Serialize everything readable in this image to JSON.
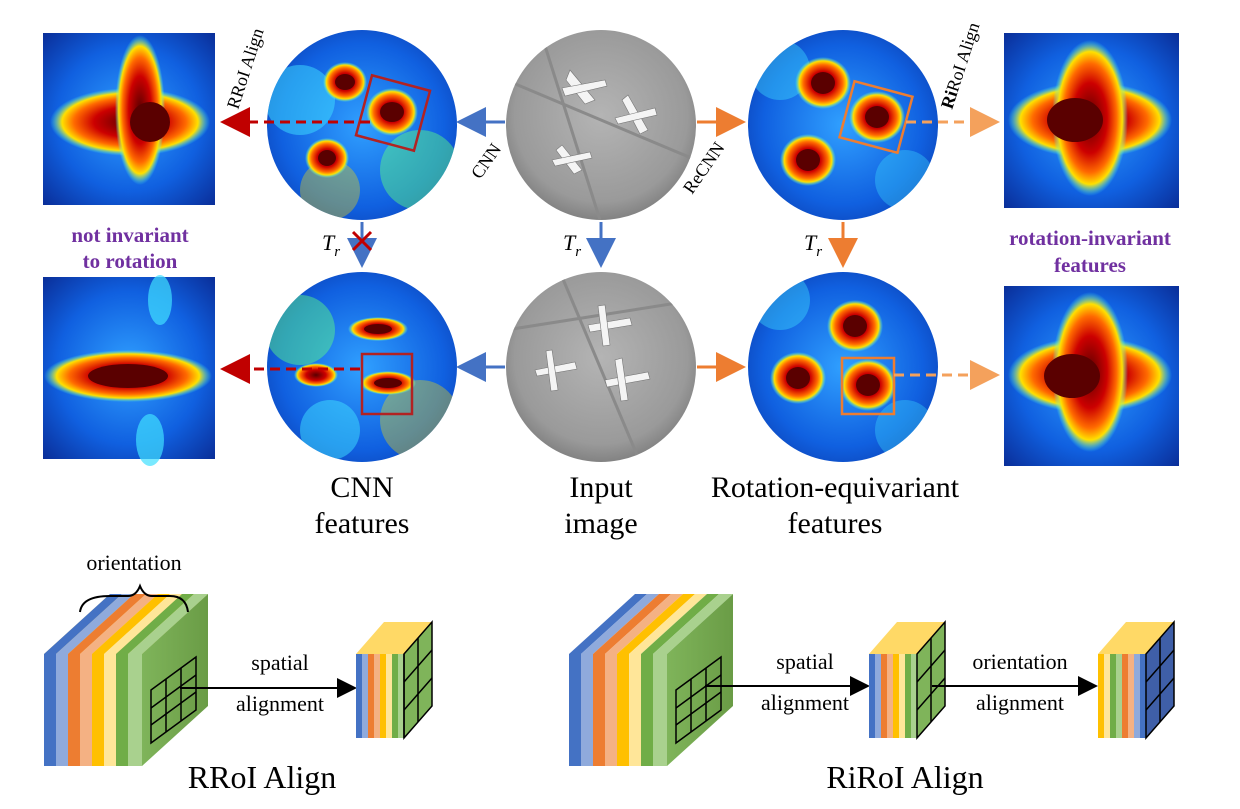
{
  "edges": {
    "cnn": "CNN",
    "recnn": "ReCNN",
    "rroi_align": "RRoI Align",
    "riroi_prefix": "Ri",
    "riroi_suffix": "RoI Align",
    "tr_symbol": "T",
    "tr_subscript": "r"
  },
  "labels": {
    "not_invariant_line1": "not invariant",
    "not_invariant_line2": "to rotation",
    "rotation_invariant_line1": "rotation-invariant",
    "rotation_invariant_line2": "features"
  },
  "captions": {
    "cnn_line1": "CNN",
    "cnn_line2": "features",
    "input_line1": "Input",
    "input_line2": "image",
    "requiv_line1": "Rotation-equivariant",
    "requiv_line2": "features"
  },
  "bottom": {
    "orientation": "orientation",
    "spatial": "spatial",
    "alignment": "alignment",
    "orientation_align_line1": "orientation",
    "orientation_align_line2": "alignment",
    "rroi_title": "RRoI Align",
    "riroi_title": "RiRoI Align"
  },
  "colors": {
    "cnn_arrow": "#4472c4",
    "recnn_arrow": "#ed7d31",
    "rroi_arrow": "#c00000",
    "riroi_arrow": "#f4a15c",
    "label_purple": "#7030a0",
    "cross": "#c00000",
    "layer_stack": [
      "#4472c4",
      "#8faadc",
      "#ed7d31",
      "#f4b183",
      "#ffc000",
      "#ffe699",
      "#70ad47",
      "#a9d18e"
    ]
  }
}
